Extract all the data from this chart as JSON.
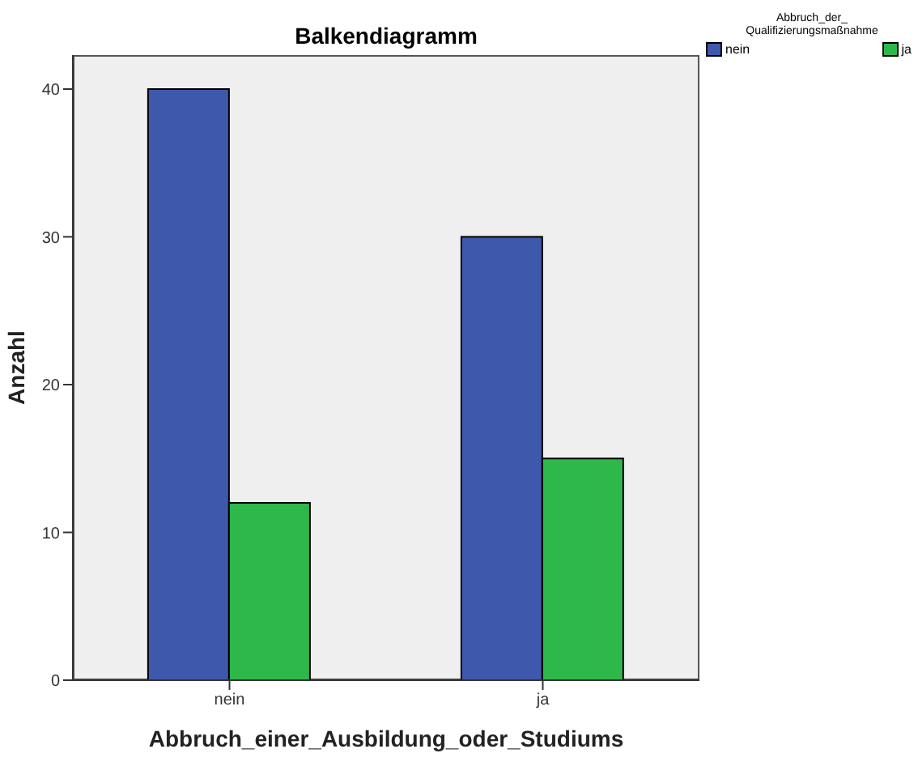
{
  "chart_data": {
    "type": "bar",
    "title": "Balkendiagramm",
    "xlabel": "Abbruch_einer_Ausbildung_oder_Studiums",
    "ylabel": "Anzahl",
    "legend_title": "Abbruch_der_ Qualifizierungsmaßnahme",
    "categories": [
      "nein",
      "ja"
    ],
    "series": [
      {
        "name": "nein",
        "color": "#3e58ac",
        "values": [
          40,
          30
        ]
      },
      {
        "name": "ja",
        "color": "#2eb84a",
        "values": [
          12,
          15
        ]
      }
    ],
    "ylim": [
      0,
      42.3
    ],
    "yticks": [
      0,
      10,
      20,
      30,
      40
    ],
    "grid": false,
    "legend": "top right"
  }
}
